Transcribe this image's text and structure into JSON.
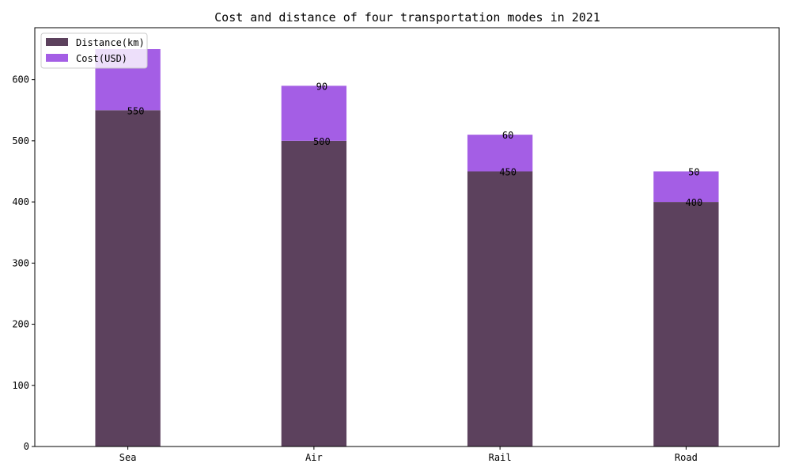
{
  "chart_data": {
    "type": "bar",
    "stacked": true,
    "title": "Cost and distance of four transportation modes in 2021",
    "xlabel": "",
    "ylabel": "",
    "categories": [
      "Sea",
      "Air",
      "Rail",
      "Road"
    ],
    "series": [
      {
        "name": "Distance(km)",
        "values": [
          550,
          500,
          450,
          400
        ],
        "color": "#5c415d"
      },
      {
        "name": "Cost(USD)",
        "values": [
          100,
          90,
          60,
          50
        ],
        "color": "#a45ee5"
      }
    ],
    "data_labels": [
      [
        "550",
        "500",
        "450",
        "400"
      ],
      [
        "",
        "90",
        "60",
        "50"
      ]
    ],
    "ylim": [
      0,
      685
    ],
    "yticks": [
      0,
      100,
      200,
      300,
      400,
      500,
      600
    ],
    "grid": false,
    "legend_position": "top-left"
  }
}
